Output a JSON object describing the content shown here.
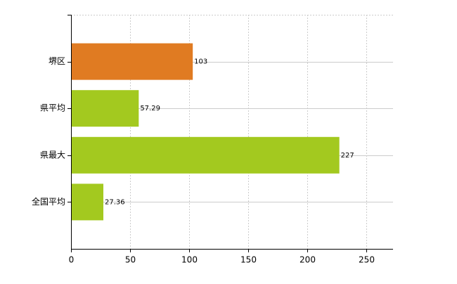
{
  "chart_data": {
    "type": "bar",
    "orientation": "horizontal",
    "categories": [
      "堺区",
      "県平均",
      "県最大",
      "全国平均"
    ],
    "values": [
      103,
      57.29,
      227,
      27.36
    ],
    "colors": [
      "#e07b22",
      "#a3c91f",
      "#a3c91f",
      "#a3c91f"
    ],
    "xlim": [
      0,
      272.4
    ],
    "xticks": [
      0,
      50,
      100,
      150,
      200,
      250
    ],
    "grid": true
  }
}
